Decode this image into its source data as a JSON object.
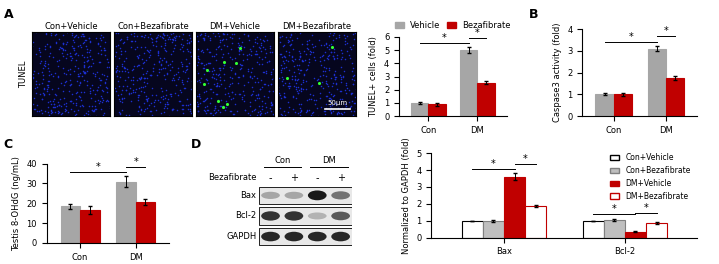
{
  "panel_labels": [
    "A",
    "B",
    "C",
    "D"
  ],
  "tunel_images": {
    "stain": "TUNEL",
    "labels": [
      "Con+Vehicle",
      "Con+Bezafibrate",
      "DM+Vehicle",
      "DM+Bezafibrate"
    ],
    "scale_bar": "50μm"
  },
  "western_blot": {
    "groups": [
      "Con",
      "DM"
    ],
    "treatment": "Bezafibrate",
    "lanes": [
      "-",
      "+",
      "-",
      "+"
    ],
    "bands": [
      "Bax",
      "Bcl-2",
      "GAPDH"
    ]
  },
  "chart_data": [
    {
      "type": "bar",
      "categories": [
        "Con",
        "DM"
      ],
      "y_label": "TUNEL+ cells (fold)",
      "ylim": [
        0,
        6
      ],
      "yticks": [
        0,
        1,
        2,
        3,
        4,
        5,
        6
      ],
      "legend": "upper center",
      "series": [
        {
          "name": "Vehicle",
          "color": "#a6a6a6",
          "values": [
            1.0,
            5.0
          ],
          "errors": [
            0.08,
            0.25
          ]
        },
        {
          "name": "Bezafibrate",
          "color": "#c00000",
          "values": [
            0.9,
            2.55
          ],
          "errors": [
            0.1,
            0.1
          ]
        }
      ],
      "significance": [
        {
          "label": "*",
          "from": [
            0,
            0
          ],
          "to": [
            0,
            1
          ]
        },
        {
          "label": "*",
          "from": [
            0,
            1
          ],
          "to": [
            1,
            1
          ]
        }
      ]
    },
    {
      "type": "bar",
      "categories": [
        "Con",
        "DM"
      ],
      "y_label": "Caspase3 activity (fold)",
      "ylim": [
        0,
        4
      ],
      "yticks": [
        0,
        1,
        2,
        3,
        4
      ],
      "series": [
        {
          "name": "Vehicle",
          "color": "#a6a6a6",
          "values": [
            1.0,
            3.1
          ],
          "errors": [
            0.05,
            0.12
          ]
        },
        {
          "name": "Bezafibrate",
          "color": "#c00000",
          "values": [
            1.0,
            1.75
          ],
          "errors": [
            0.08,
            0.1
          ]
        }
      ],
      "significance": [
        {
          "label": "*",
          "from": [
            0,
            0
          ],
          "to": [
            0,
            1
          ]
        },
        {
          "label": "*",
          "from": [
            0,
            1
          ],
          "to": [
            1,
            1
          ]
        }
      ]
    },
    {
      "type": "bar",
      "categories": [
        "Con",
        "DM"
      ],
      "y_label": "Testis 8-OHdG (ng/mL)",
      "ylim": [
        0,
        40
      ],
      "yticks": [
        0,
        10,
        20,
        30,
        40
      ],
      "series": [
        {
          "name": "Vehicle",
          "color": "#a6a6a6",
          "values": [
            18.5,
            31.0
          ],
          "errors": [
            1.2,
            3.0
          ]
        },
        {
          "name": "Bezafibrate",
          "color": "#c00000",
          "values": [
            16.5,
            20.5
          ],
          "errors": [
            2.0,
            1.5
          ]
        }
      ],
      "significance": [
        {
          "label": "*",
          "from": [
            0,
            0
          ],
          "to": [
            0,
            1
          ]
        },
        {
          "label": "*",
          "from": [
            0,
            1
          ],
          "to": [
            1,
            1
          ]
        }
      ]
    },
    {
      "type": "bar",
      "categories": [
        "Bax",
        "Bcl-2"
      ],
      "y_label": "Normalized to GAPDH (fold)",
      "ylim": [
        0,
        5
      ],
      "yticks": [
        0,
        1,
        2,
        3,
        4,
        5
      ],
      "legend": "upper right",
      "series": [
        {
          "name": "Con+Vehicle",
          "color": "#ffffff",
          "values": [
            1.0,
            1.0
          ],
          "errors": [
            0.0,
            0.0
          ]
        },
        {
          "name": "Con+Bezafibrate",
          "color": "#bfbfbf",
          "values": [
            1.0,
            1.05
          ],
          "errors": [
            0.05,
            0.08
          ]
        },
        {
          "name": "DM+Vehicle",
          "color": "#c00000",
          "values": [
            3.6,
            0.35
          ],
          "errors": [
            0.2,
            0.04
          ]
        },
        {
          "name": "DM+Bezafibrate",
          "color": "#ffffff",
          "values": [
            1.85,
            0.85
          ],
          "errors": [
            0.06,
            0.06
          ]
        }
      ],
      "significance": [
        {
          "label": "*",
          "from": [
            0,
            0
          ],
          "to": [
            2,
            0
          ]
        },
        {
          "label": "*",
          "from": [
            2,
            0
          ],
          "to": [
            3,
            0
          ]
        },
        {
          "label": "*",
          "from": [
            0,
            1
          ],
          "to": [
            2,
            1
          ]
        },
        {
          "label": "*",
          "from": [
            2,
            1
          ],
          "to": [
            3,
            1
          ]
        }
      ]
    }
  ]
}
